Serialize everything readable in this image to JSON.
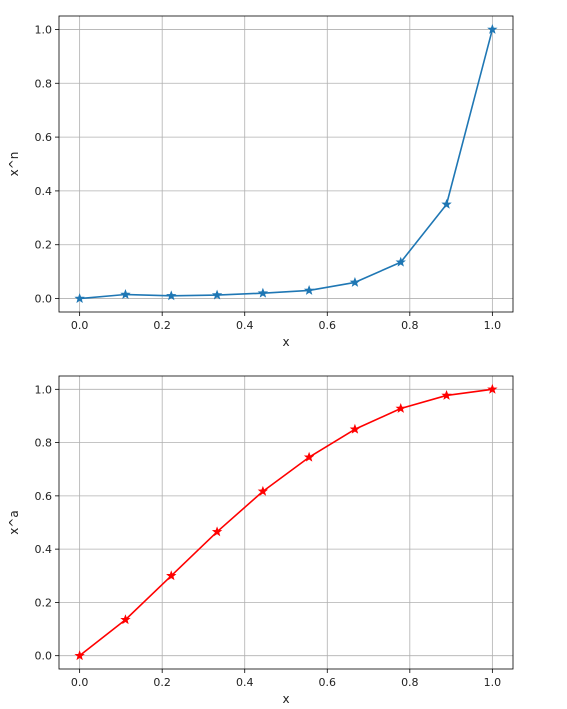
{
  "chart_data": [
    {
      "type": "line",
      "xlabel": "x",
      "ylabel": "x^n",
      "xlim": [
        -0.05,
        1.05
      ],
      "ylim": [
        -0.05,
        1.05
      ],
      "grid": true,
      "color": "#1f77b4",
      "marker": "star",
      "xticks": [
        "0.0",
        "0.2",
        "0.4",
        "0.6",
        "0.8",
        "1.0"
      ],
      "yticks": [
        "0.0",
        "0.2",
        "0.4",
        "0.6",
        "0.8",
        "1.0"
      ],
      "x": [
        0.0,
        0.111,
        0.222,
        0.333,
        0.444,
        0.556,
        0.667,
        0.778,
        0.889,
        1.0
      ],
      "y": [
        0.0,
        0.015,
        0.01,
        0.013,
        0.02,
        0.03,
        0.06,
        0.135,
        0.35,
        1.0
      ]
    },
    {
      "type": "line",
      "xlabel": "x",
      "ylabel": "x^a",
      "xlim": [
        -0.05,
        1.05
      ],
      "ylim": [
        -0.05,
        1.05
      ],
      "grid": true,
      "color": "#ff0000",
      "marker": "star",
      "xticks": [
        "0.0",
        "0.2",
        "0.4",
        "0.6",
        "0.8",
        "1.0"
      ],
      "yticks": [
        "0.0",
        "0.2",
        "0.4",
        "0.6",
        "0.8",
        "1.0"
      ],
      "x": [
        0.0,
        0.111,
        0.222,
        0.333,
        0.444,
        0.556,
        0.667,
        0.778,
        0.889,
        1.0
      ],
      "y": [
        0.0,
        0.135,
        0.3,
        0.465,
        0.617,
        0.745,
        0.85,
        0.928,
        0.977,
        1.0
      ]
    }
  ]
}
